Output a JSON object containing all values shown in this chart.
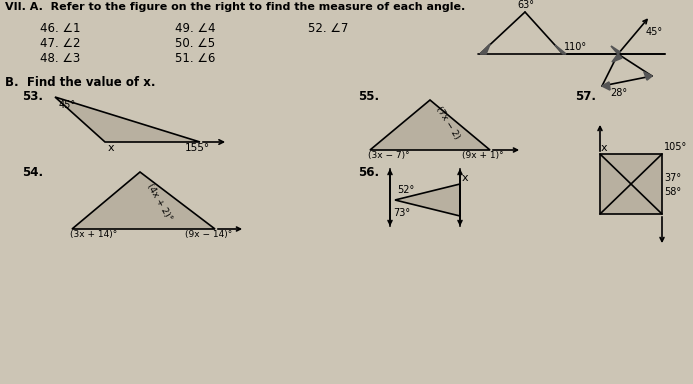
{
  "bg_color": "#ccc5b5",
  "title_text": "VII. A.  Refer to the figure on the right to find the measure of each angle.",
  "angle_symbol": "∠",
  "items_col1": [
    "46. ∠1",
    "47. ∠2",
    "48. ∠3"
  ],
  "items_col2": [
    "49. ∠4",
    "50. ∠5",
    "51. ∠6"
  ],
  "items_col3": [
    "52. ∠7",
    "",
    ""
  ],
  "section_b_title": "B.  Find the value of x.",
  "label53": "53.",
  "label54": "54.",
  "label55": "55.",
  "label56": "56.",
  "label57": "57.",
  "p53_angles": {
    "top": "45°",
    "x": "x",
    "ext": "155°"
  },
  "p54_side": "(4x + 2)°",
  "p54_bl": "(3x + 14)°",
  "p54_br": "(9x − 14)°",
  "p55_top": "(7x − 2)",
  "p55_bl": "(3x − 7)°",
  "p55_br": "(9x + 1)°",
  "p56_x": "x",
  "p56_left": "52°",
  "p56_bot": "73°",
  "p57_x": "x",
  "p57_tr": "105°",
  "p57_r1": "37°",
  "p57_r2": "58°",
  "fig_63": "63°",
  "fig_110": "110°",
  "fig_45": "45°",
  "fig_28": "28°",
  "tri_fill": "#b8b0a0",
  "dark_fill": "#555555"
}
